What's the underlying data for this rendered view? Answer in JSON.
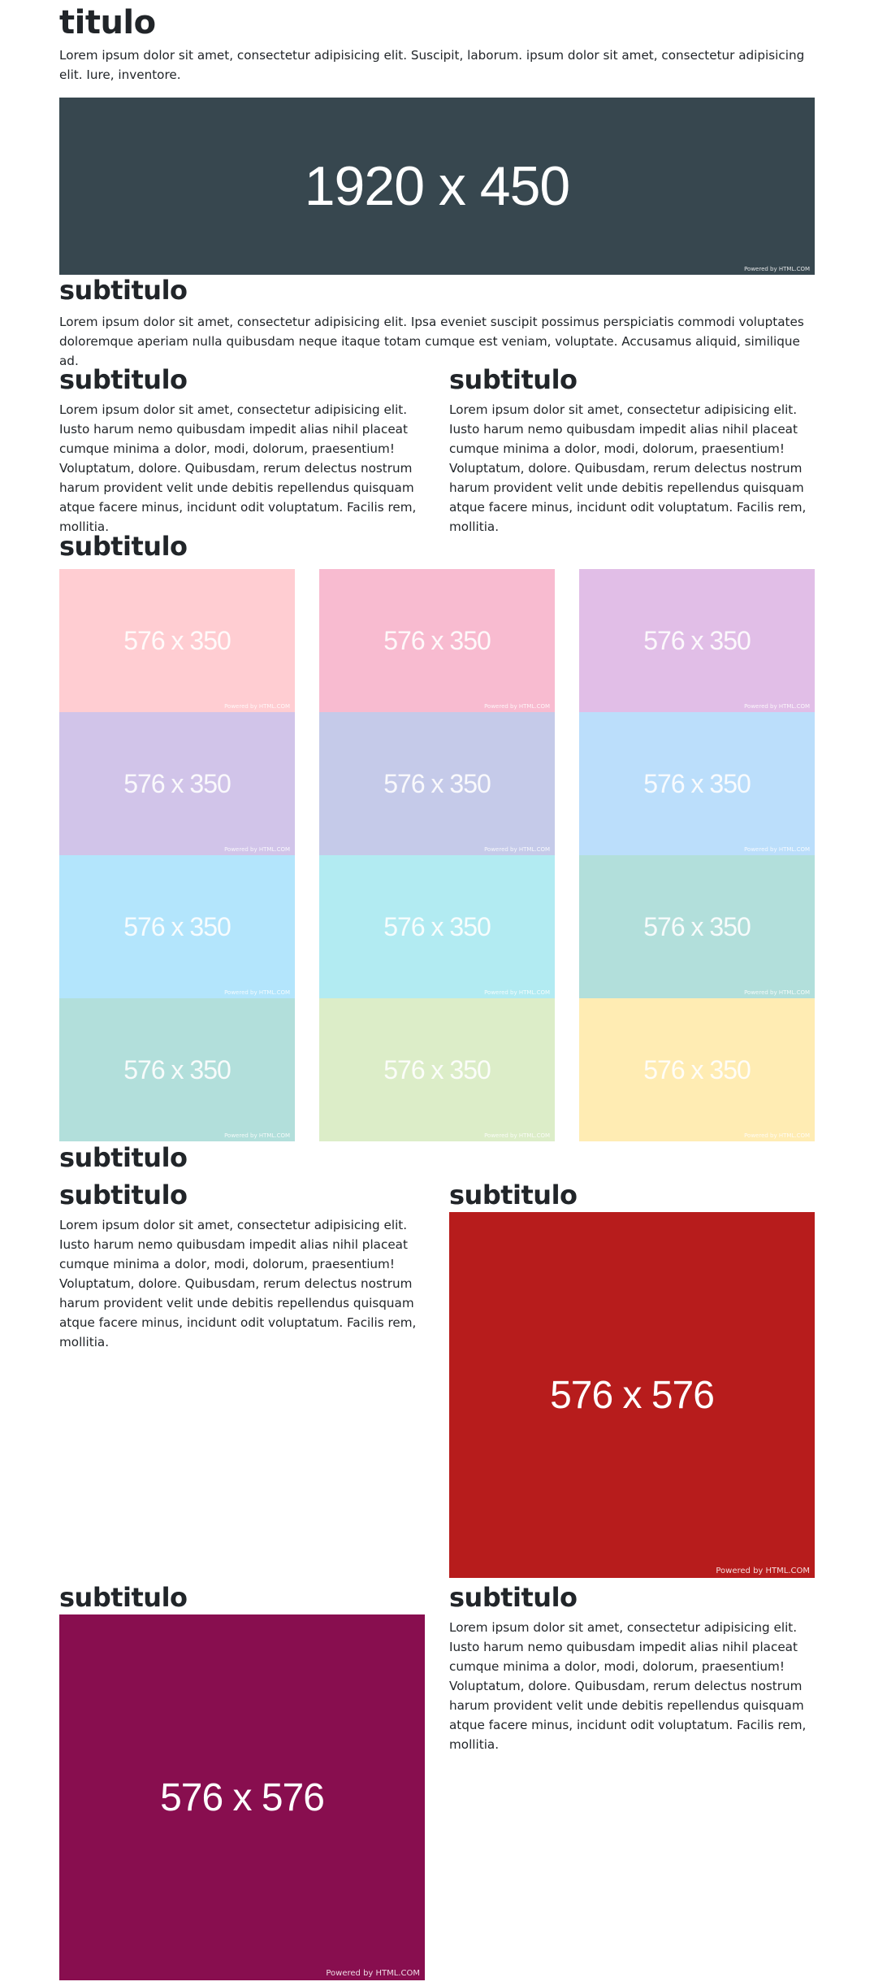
{
  "hero": {
    "title": "titulo",
    "text": "Lorem ipsum dolor sit amet, consectetur adipisicing elit. Suscipit, laborum. ipsum dolor sit amet, consectetur adipisicing elit. Iure, inventore.",
    "banner_label": "1920 x 450",
    "banner_color": "#37474f",
    "powered": "Powered by HTML.COM"
  },
  "section_a": {
    "title": "subtitulo",
    "text": "Lorem ipsum dolor sit amet, consectetur adipisicing elit. Ipsa eveniet suscipit possimus perspiciatis commodi voluptates doloremque aperiam nulla quibusdam neque itaque totam cumque est veniam, voluptate. Accusamus aliquid, similique ad."
  },
  "two_cols": [
    {
      "title": "subtitulo",
      "text": "Lorem ipsum dolor sit amet, consectetur adipisicing elit. Iusto harum nemo quibusdam impedit alias nihil placeat cumque minima a dolor, modi, dolorum, praesentium! Voluptatum, dolore. Quibusdam, rerum delectus nostrum harum provident velit unde debitis repellendus quisquam atque facere minus, incidunt odit voluptatum. Facilis rem, mollitia."
    },
    {
      "title": "subtitulo",
      "text": "Lorem ipsum dolor sit amet, consectetur adipisicing elit. Iusto harum nemo quibusdam impedit alias nihil placeat cumque minima a dolor, modi, dolorum, praesentium! Voluptatum, dolore. Quibusdam, rerum delectus nostrum harum provident velit unde debitis repellendus quisquam atque facere minus, incidunt odit voluptatum. Facilis rem, mollitia."
    }
  ],
  "gallery": {
    "title": "subtitulo",
    "tile_label": "576 x 350",
    "powered": "Powered by HTML.COM",
    "columns": [
      [
        "#ffcdd2",
        "#d1c4e9",
        "#b3e5fc",
        "#b2dfdb"
      ],
      [
        "#f8bbd0",
        "#c5cae9",
        "#b2ebf2",
        "#dcedc8"
      ],
      [
        "#e1bee7",
        "#bbdefb",
        "#b2dfdb",
        "#ffecb3"
      ]
    ]
  },
  "section_b": {
    "title": "subtitulo"
  },
  "media_row_1": {
    "left_title": "subtitulo",
    "left_text": "Lorem ipsum dolor sit amet, consectetur adipisicing elit. Iusto harum nemo quibusdam impedit alias nihil placeat cumque minima a dolor, modi, dolorum, praesentium! Voluptatum, dolore. Quibusdam, rerum delectus nostrum harum provident velit unde debitis repellendus quisquam atque facere minus, incidunt odit voluptatum. Facilis rem, mollitia.",
    "right_title": "subtitulo",
    "image_label": "576 x 576",
    "image_color": "#b71c1c",
    "powered": "Powered by HTML.COM"
  },
  "media_row_2": {
    "left_title": "subtitulo",
    "image_label": "576 x 576",
    "image_color": "#880e4f",
    "powered": "Powered by HTML.COM",
    "right_title": "subtitulo",
    "right_text": "Lorem ipsum dolor sit amet, consectetur adipisicing elit. Iusto harum nemo quibusdam impedit alias nihil placeat cumque minima a dolor, modi, dolorum, praesentium! Voluptatum, dolore. Quibusdam, rerum delectus nostrum harum provident velit unde debitis repellendus quisquam atque facere minus, incidunt odit voluptatum. Facilis rem, mollitia."
  }
}
